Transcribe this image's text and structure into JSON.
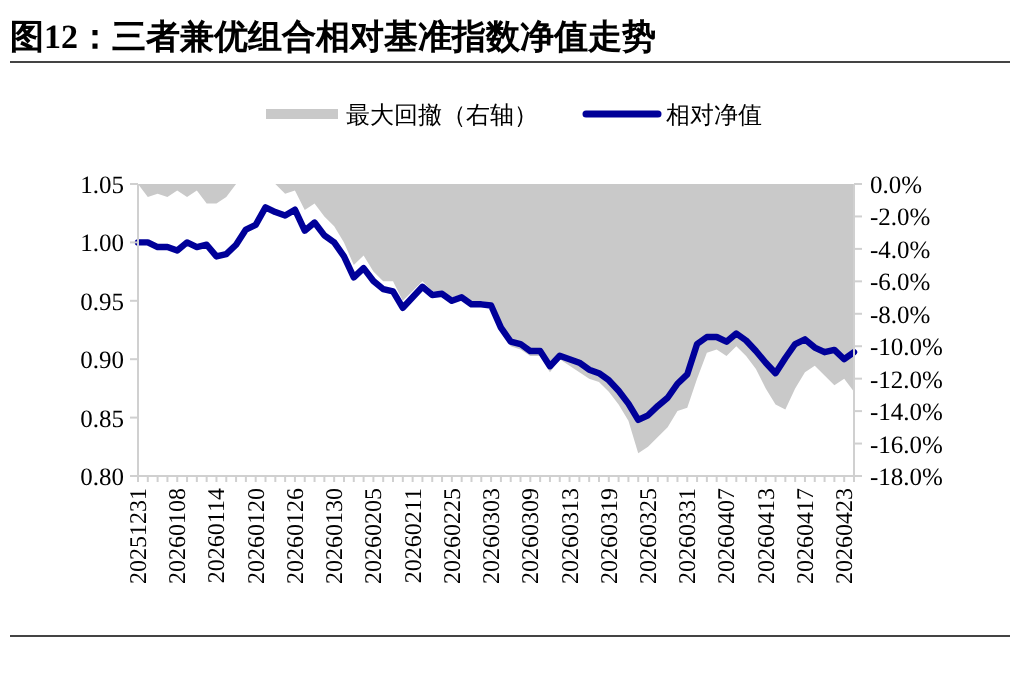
{
  "chart_data": {
    "type": "line",
    "title": "图12：三者兼优组合相对基准指数净值走势",
    "categories": [
      "20251231",
      null,
      null,
      null,
      "20260108",
      null,
      null,
      null,
      "20260114",
      null,
      null,
      null,
      "20260120",
      null,
      null,
      null,
      "20260126",
      null,
      null,
      null,
      "20260130",
      null,
      null,
      null,
      "20260205",
      null,
      null,
      null,
      "20260211",
      null,
      null,
      null,
      "20260225",
      null,
      null,
      null,
      "20260303",
      null,
      null,
      null,
      "20260309",
      null,
      null,
      null,
      "20260313",
      null,
      null,
      null,
      "20260319",
      null,
      null,
      null,
      "20260325",
      null,
      null,
      null,
      "20260331",
      null,
      null,
      null,
      "20260407",
      null,
      null,
      null,
      "20260413",
      null,
      null,
      null,
      "20260417",
      null,
      null,
      null,
      "20260423",
      null
    ],
    "series": [
      {
        "name": "最大回撤（右轴）",
        "type": "area",
        "axis": "y2",
        "color": "#c9c9c9",
        "values": [
          0,
          -0.8,
          -0.6,
          -0.8,
          -0.4,
          -0.8,
          -0.4,
          -1.2,
          -1.2,
          -0.8,
          0,
          0,
          0,
          0,
          0,
          -0.6,
          -0.4,
          -1.6,
          -1.2,
          -2.0,
          -2.6,
          -3.6,
          -5.0,
          -4.4,
          -5.4,
          -6.0,
          -6.0,
          -7.2,
          -6.6,
          -6.0,
          -6.6,
          -6.6,
          -7.0,
          -6.8,
          -7.4,
          -7.4,
          -7.4,
          -9.0,
          -10.0,
          -10.2,
          -10.6,
          -10.6,
          -11.6,
          -10.8,
          -11.2,
          -11.6,
          -12.0,
          -12.2,
          -12.8,
          -13.6,
          -14.6,
          -16.6,
          -16.2,
          -15.6,
          -15.0,
          -14.0,
          -13.8,
          -12.0,
          -10.4,
          -10.2,
          -10.6,
          -10.0,
          -10.6,
          -11.4,
          -12.6,
          -13.6,
          -13.9,
          -12.6,
          -11.6,
          -11.2,
          -11.8,
          -12.4,
          -12.0,
          -12.8
        ]
      },
      {
        "name": "相对净值",
        "type": "line",
        "color": "#000099",
        "values": [
          1.0,
          1.0,
          0.996,
          0.996,
          0.993,
          1.0,
          0.996,
          0.998,
          0.988,
          0.99,
          0.998,
          1.011,
          1.015,
          1.03,
          1.026,
          1.023,
          1.028,
          1.01,
          1.017,
          1.006,
          1.0,
          0.988,
          0.97,
          0.978,
          0.967,
          0.96,
          0.958,
          0.944,
          0.953,
          0.962,
          0.955,
          0.956,
          0.95,
          0.953,
          0.947,
          0.947,
          0.946,
          0.927,
          0.915,
          0.913,
          0.907,
          0.907,
          0.894,
          0.903,
          0.9,
          0.897,
          0.891,
          0.888,
          0.882,
          0.873,
          0.862,
          0.848,
          0.852,
          0.86,
          0.867,
          0.879,
          0.887,
          0.913,
          0.919,
          0.919,
          0.915,
          0.922,
          0.916,
          0.907,
          0.897,
          0.888,
          0.901,
          0.913,
          0.917,
          0.91,
          0.906,
          0.908,
          0.9,
          0.906
        ]
      }
    ],
    "ylim": [
      0.8,
      1.05
    ],
    "yticks": [
      {
        "value": 0.8,
        "label": "0.80"
      },
      {
        "value": 0.85,
        "label": "0.85"
      },
      {
        "value": 0.9,
        "label": "0.90"
      },
      {
        "value": 0.95,
        "label": "0.95"
      },
      {
        "value": 1.0,
        "label": "1.00"
      },
      {
        "value": 1.05,
        "label": "1.05"
      }
    ],
    "y2lim": [
      -18,
      0
    ],
    "y2ticks": [
      {
        "value": 0,
        "label": "0.0%"
      },
      {
        "value": -2,
        "label": "-2.0%"
      },
      {
        "value": -4,
        "label": "-4.0%"
      },
      {
        "value": -6,
        "label": "-6.0%"
      },
      {
        "value": -8,
        "label": "-8.0%"
      },
      {
        "value": -10,
        "label": "-10.0%"
      },
      {
        "value": -12,
        "label": "-12.0%"
      },
      {
        "value": -14,
        "label": "-14.0%"
      },
      {
        "value": -16,
        "label": "-16.0%"
      },
      {
        "value": -18,
        "label": "-18.0%"
      }
    ],
    "legend": "top",
    "grid": false
  }
}
